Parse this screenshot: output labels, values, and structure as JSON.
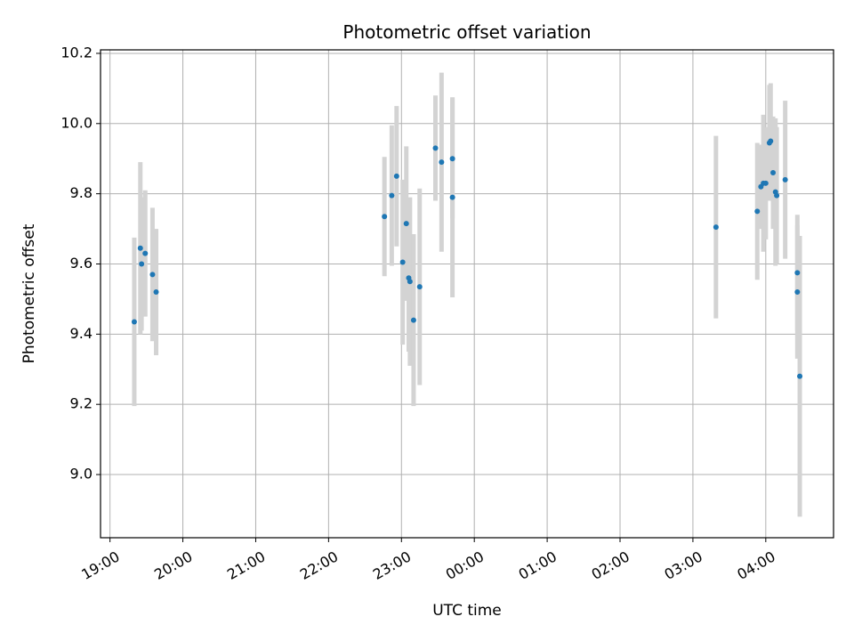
{
  "chart_data": {
    "type": "scatter",
    "title": "Photometric offset variation",
    "xlabel": "UTC time",
    "ylabel": "Photometric offset",
    "x_axis_kind": "time",
    "x_ticks": [
      "19:00",
      "20:00",
      "21:00",
      "22:00",
      "23:00",
      "00:00",
      "01:00",
      "02:00",
      "03:00",
      "04:00"
    ],
    "x_tick_hours": [
      19,
      20,
      21,
      22,
      23,
      24,
      25,
      26,
      27,
      28
    ],
    "xlim": [
      18.87,
      28.93
    ],
    "y_ticks": [
      "9.0",
      "9.2",
      "9.4",
      "9.6",
      "9.8",
      "10.0",
      "10.2"
    ],
    "y_tick_values": [
      9.0,
      9.2,
      9.4,
      9.6,
      9.8,
      10.0,
      10.2
    ],
    "ylim": [
      8.82,
      10.21
    ],
    "grid": true,
    "colors": {
      "points": "#1f77b4",
      "errorbars": "#d3d3d3",
      "grid": "#b0b0b0",
      "axes": "#000000"
    },
    "series": [
      {
        "points": [
          {
            "t": "19:20",
            "y": 9.435,
            "err": 0.24
          },
          {
            "t": "19:25",
            "y": 9.645,
            "err": 0.245
          },
          {
            "t": "19:26",
            "y": 9.6,
            "err": 0.19
          },
          {
            "t": "19:29",
            "y": 9.63,
            "err": 0.18
          },
          {
            "t": "19:35",
            "y": 9.57,
            "err": 0.19
          },
          {
            "t": "19:38",
            "y": 9.52,
            "err": 0.18
          },
          {
            "t": "22:46",
            "y": 9.735,
            "err": 0.17
          },
          {
            "t": "22:52",
            "y": 9.795,
            "err": 0.2
          },
          {
            "t": "22:56",
            "y": 9.85,
            "err": 0.2
          },
          {
            "t": "23:01",
            "y": 9.605,
            "err": 0.235
          },
          {
            "t": "23:04",
            "y": 9.715,
            "err": 0.22
          },
          {
            "t": "23:06",
            "y": 9.56,
            "err": 0.21
          },
          {
            "t": "23:07",
            "y": 9.55,
            "err": 0.24
          },
          {
            "t": "23:10",
            "y": 9.44,
            "err": 0.245
          },
          {
            "t": "23:15",
            "y": 9.535,
            "err": 0.28
          },
          {
            "t": "23:28",
            "y": 9.93,
            "err": 0.15
          },
          {
            "t": "23:33",
            "y": 9.89,
            "err": 0.255
          },
          {
            "t": "23:42",
            "y": 9.9,
            "err": 0.17
          },
          {
            "t": "23:42",
            "y": 9.79,
            "err": 0.285
          },
          {
            "t": "03:19",
            "y": 9.705,
            "err": 0.26
          },
          {
            "t": "03:53",
            "y": 9.75,
            "err": 0.195
          },
          {
            "t": "03:56",
            "y": 9.82,
            "err": 0.12
          },
          {
            "t": "03:58",
            "y": 9.83,
            "err": 0.195
          },
          {
            "t": "04:00",
            "y": 9.83,
            "err": 0.16
          },
          {
            "t": "04:03",
            "y": 9.945,
            "err": 0.165
          },
          {
            "t": "04:04",
            "y": 9.95,
            "err": 0.165
          },
          {
            "t": "04:06",
            "y": 9.86,
            "err": 0.16
          },
          {
            "t": "04:08",
            "y": 9.805,
            "err": 0.21
          },
          {
            "t": "04:09",
            "y": 9.795,
            "err": 0.195
          },
          {
            "t": "04:16",
            "y": 9.84,
            "err": 0.225
          },
          {
            "t": "04:26",
            "y": 9.575,
            "err": 0.165
          },
          {
            "t": "04:26",
            "y": 9.52,
            "err": 0.19
          },
          {
            "t": "04:28",
            "y": 9.28,
            "err": 0.4
          }
        ]
      }
    ]
  }
}
